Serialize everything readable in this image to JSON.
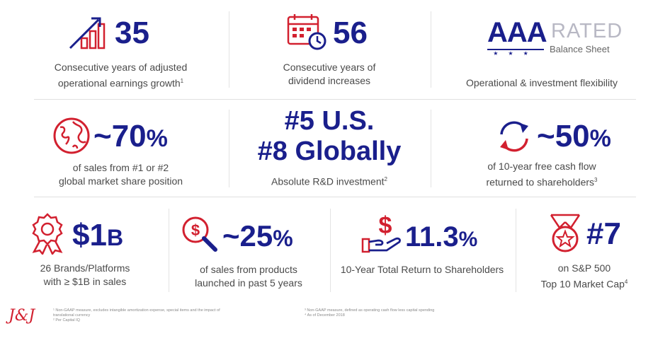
{
  "colors": {
    "navy": "#1a1f8c",
    "red": "#d2202f",
    "caption": "#4a4a4a"
  },
  "row1": [
    {
      "icon": "growth-chart-icon",
      "value": "35",
      "caption_1": "Consecutive years of adjusted",
      "caption_2": "operational earnings growth",
      "sup": "1"
    },
    {
      "icon": "calendar-clock-icon",
      "value": "56",
      "caption_1": "Consecutive years of",
      "caption_2": "dividend increases"
    },
    {
      "rating": "AAA",
      "rated": "RATED",
      "sub": "Balance Sheet",
      "caption_1": "Operational & investment flexibility"
    }
  ],
  "row2": [
    {
      "icon": "globe-icon",
      "value": "~70",
      "unit": "%",
      "caption_1": "of sales from #1 or #2",
      "caption_2": "global market share position"
    },
    {
      "line_1": "#5 U.S.",
      "line_2": "#8 Globally",
      "caption_1": "Absolute R&D investment",
      "sup": "2"
    },
    {
      "icon": "cycle-arrows-icon",
      "value": "~50",
      "unit": "%",
      "caption_1": "of 10-year free cash flow",
      "caption_2": "returned to shareholders",
      "sup": "3"
    }
  ],
  "row3": [
    {
      "icon": "award-ribbon-icon",
      "value": "$1",
      "unit": "B",
      "caption_1": "26 Brands/Platforms",
      "caption_2": "with ≥ $1B in sales"
    },
    {
      "icon": "dollar-magnifier-icon",
      "value": "~25",
      "unit": "%",
      "caption_1": "of sales from products",
      "caption_2": "launched in past 5 years"
    },
    {
      "icon": "dollar-hand-icon",
      "value": "11.3",
      "unit": "%",
      "caption_1": "10-Year Total Return to Shareholders"
    },
    {
      "icon": "medal-star-icon",
      "value": "#7",
      "caption_1": "on S&P 500",
      "caption_2": "Top 10 Market Cap",
      "sup": "4"
    }
  ],
  "footnotes": {
    "logo": "J&J",
    "n1a": "¹ Non-GAAP measure, excludes intangible amortization expense, special items and the impact of",
    "n1b": "translational currency",
    "n2": "² Per Capital IQ",
    "n3": "³ Non-GAAP measure, defined as operating cash flow less capital spending",
    "n4": "⁴ As of December 2018"
  }
}
